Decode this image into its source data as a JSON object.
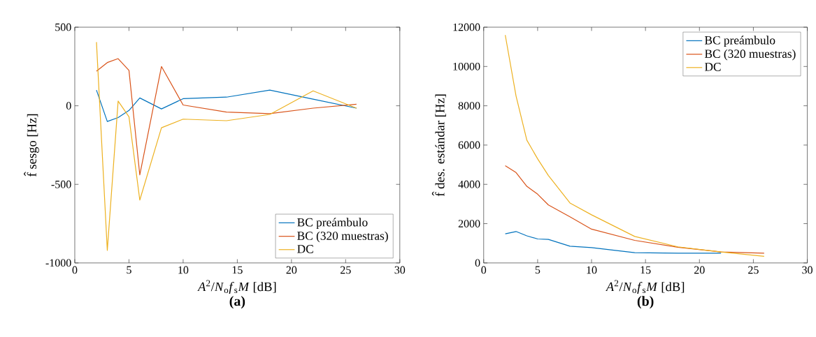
{
  "chart_data": [
    {
      "type": "line",
      "title": "**(a)**",
      "xlabel": "*A*$^{2}$/*N*$_{o}$*f*$_{s}$*M* [dB]",
      "ylabel": "f̂ sesgo [Hz]",
      "x": [
        2,
        3,
        4,
        5,
        6,
        8,
        10,
        14,
        18,
        22,
        26
      ],
      "series": [
        {
          "name": "BC preámbulo",
          "color": "#0072bd",
          "values": [
            100,
            -100,
            -75,
            -30,
            50,
            -20,
            45,
            55,
            100,
            42,
            -15
          ]
        },
        {
          "name": "BC (320 muestras)",
          "color": "#d95319",
          "values": [
            220,
            275,
            300,
            225,
            -440,
            250,
            5,
            -40,
            -50,
            -15,
            10
          ]
        },
        {
          "name": "DC",
          "color": "#edb120",
          "values": [
            405,
            -920,
            30,
            -70,
            -600,
            -140,
            -85,
            -95,
            -55,
            95,
            -15
          ]
        }
      ],
      "xlim": [
        0,
        30
      ],
      "xticks": [
        0,
        5,
        10,
        15,
        20,
        25,
        30
      ],
      "ylim": [
        -1000,
        500
      ],
      "yticks": [
        -1000,
        -500,
        0,
        500
      ],
      "grid": false,
      "legend": "bottom right"
    },
    {
      "type": "line",
      "title": "**(b)**",
      "xlabel": "*A*$^{2}$/*N*$_{o}$*f*$_{s}$*M* [dB]",
      "ylabel": "f̂ des. estándar [Hz]",
      "x": [
        2,
        3,
        4,
        5,
        6,
        8,
        10,
        14,
        18,
        22,
        26
      ],
      "series": [
        {
          "name": "BC preámbulo",
          "color": "#0072bd",
          "values": [
            1480,
            1600,
            1380,
            1220,
            1200,
            850,
            780,
            520,
            500,
            500,
            null
          ]
        },
        {
          "name": "BC (320 muestras)",
          "color": "#d95319",
          "values": [
            4950,
            4600,
            3900,
            3500,
            2950,
            2350,
            1720,
            1150,
            800,
            560,
            500
          ]
        },
        {
          "name": "DC",
          "color": "#edb120",
          "values": [
            11600,
            8500,
            6250,
            5300,
            4450,
            3050,
            2450,
            1350,
            820,
            560,
            340
          ]
        }
      ],
      "xlim": [
        0,
        30
      ],
      "xticks": [
        0,
        5,
        10,
        15,
        20,
        25,
        30
      ],
      "ylim": [
        0,
        12000
      ],
      "yticks": [
        0,
        2000,
        4000,
        6000,
        8000,
        10000,
        12000
      ],
      "grid": false,
      "legend": "top right"
    }
  ]
}
